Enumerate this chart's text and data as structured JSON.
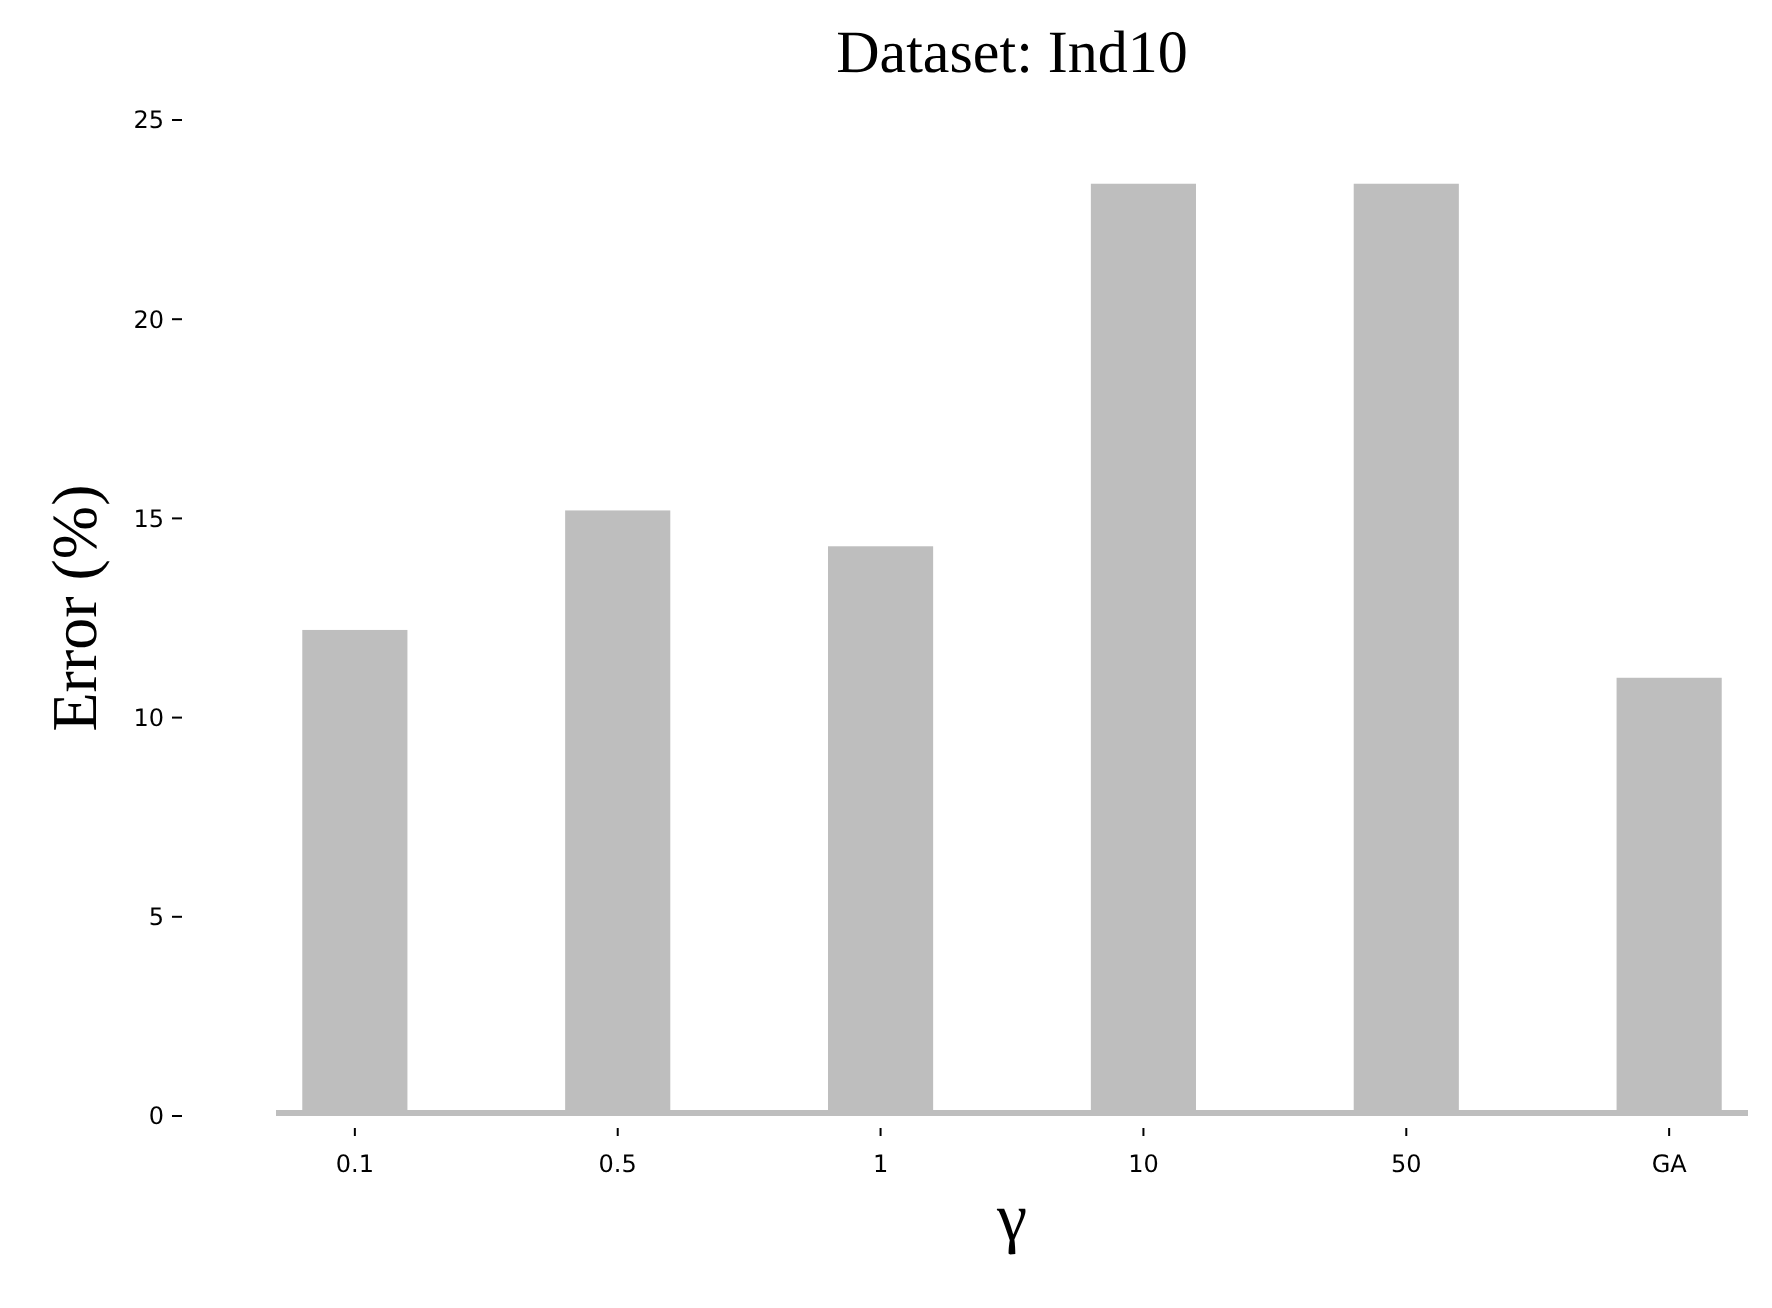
{
  "chart_data": {
    "type": "bar",
    "title": "Dataset: Ind10",
    "xlabel": "γ",
    "ylabel": "Error (%)",
    "categories": [
      "0.1",
      "0.5",
      "1",
      "10",
      "50",
      "GA"
    ],
    "values": [
      12.2,
      15.2,
      14.3,
      23.4,
      23.4,
      11.0
    ],
    "color": "#bebebe",
    "ylim": [
      0,
      25
    ],
    "yticks": [
      0,
      5,
      10,
      15,
      20,
      25
    ]
  }
}
